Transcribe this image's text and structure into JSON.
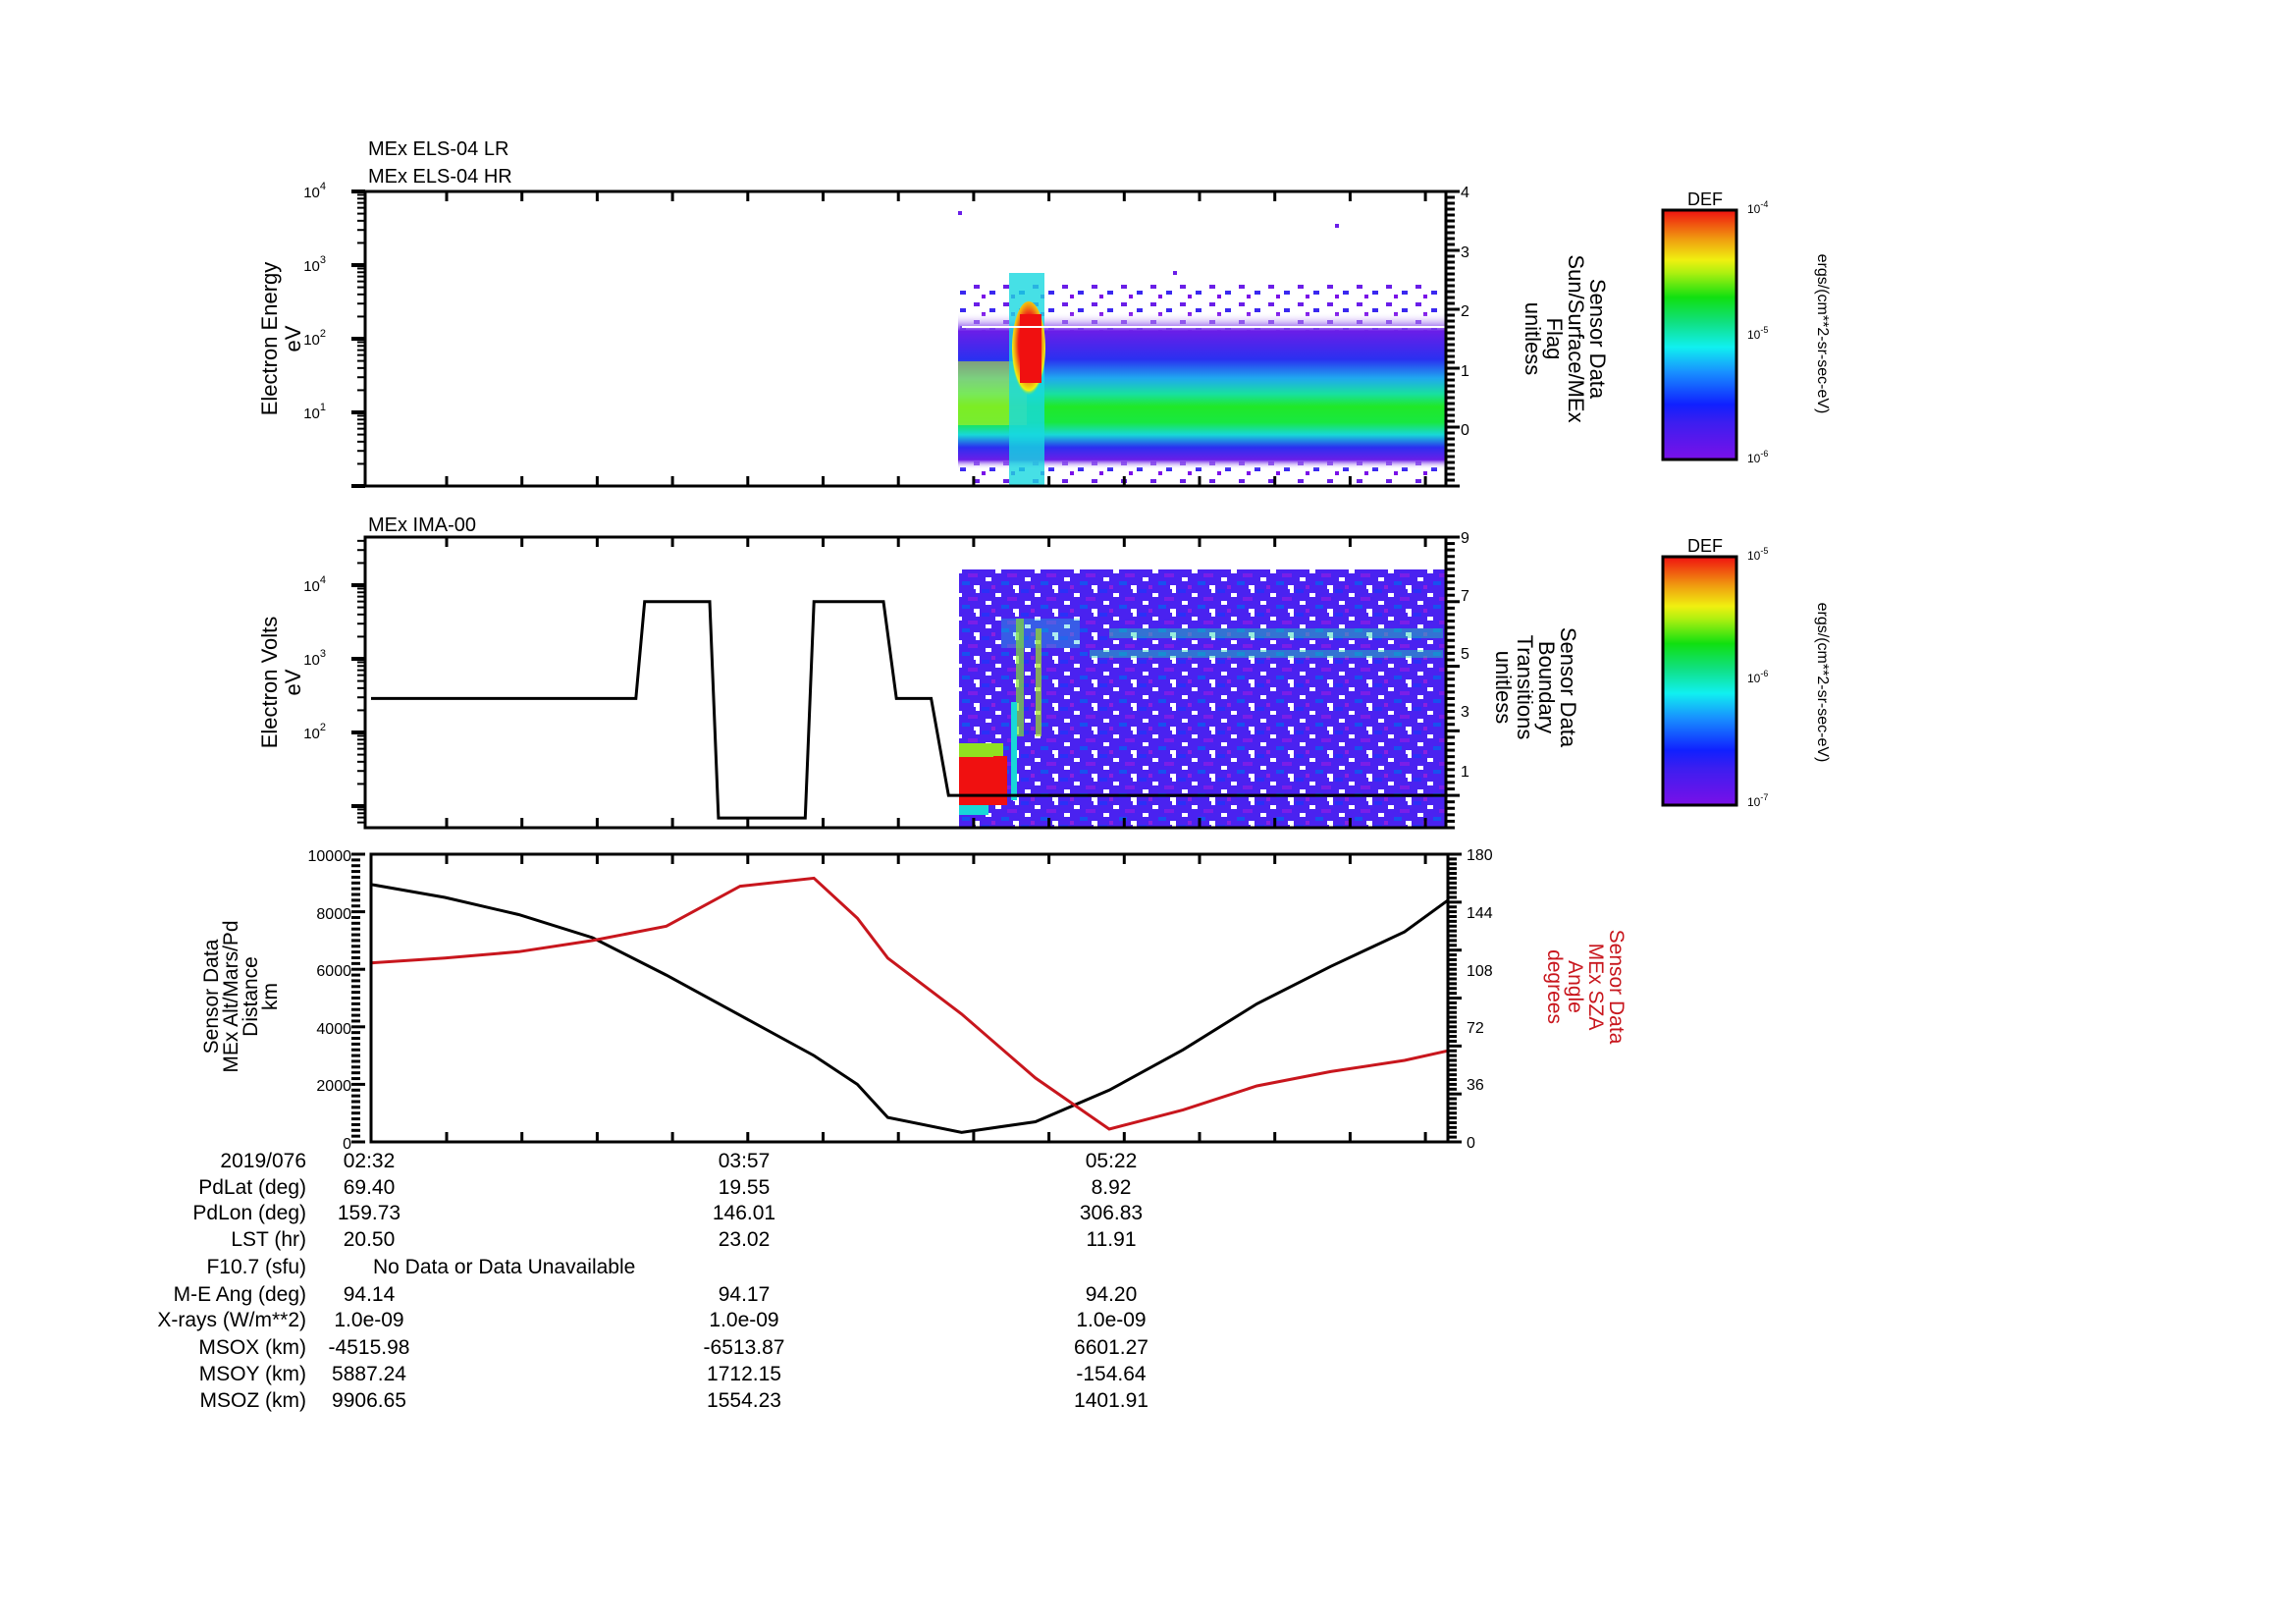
{
  "chart_data": [
    {
      "type": "heatmap",
      "title_lines": [
        "MEx ELS-04 LR",
        "MEx ELS-04 HR"
      ],
      "ylabel": [
        "Electron Energy",
        "eV"
      ],
      "yscale": "log",
      "ylim": [
        1,
        10000
      ],
      "yticks": [
        "10^1",
        "10^2",
        "10^3",
        "10^4"
      ],
      "right_ylabel": [
        "Sensor Data",
        "Sun/Surface/MEx",
        "Flag",
        "unitless"
      ],
      "right_ylim": [
        -1,
        4
      ],
      "right_yticks": [
        0,
        1,
        2,
        3,
        4
      ],
      "data_start_time": "04:26",
      "features": {
        "background_band_eV": [
          3,
          150
        ],
        "core_green_band_eV": [
          8,
          40
        ],
        "red_burst_time": "04:38",
        "red_burst_eV": [
          50,
          200
        ],
        "white_line_eV": 150
      },
      "colorbar": {
        "label": "DEF",
        "units": "ergs/(cm**2-sr-sec-eV)",
        "min": "10^-6",
        "mid": "10^-5",
        "max": "10^-4"
      }
    },
    {
      "type": "heatmap",
      "title": "MEx IMA-00",
      "ylabel": [
        "Electron Volts",
        "eV"
      ],
      "yscale": "log",
      "ylim": [
        5,
        45000
      ],
      "yticks": [
        "10^2",
        "10^3",
        "10^4"
      ],
      "right_ylabel": [
        "Sensor Data",
        "Boundary",
        "Transitions",
        "unitless"
      ],
      "right_ylim": [
        0,
        9
      ],
      "right_yticks": [
        1,
        3,
        5,
        7,
        9
      ],
      "data_start_time": "04:26",
      "boundary_transitions_line": {
        "times": [
          "02:32",
          "03:33",
          "03:35",
          "03:50",
          "03:52",
          "04:12",
          "04:14",
          "04:30",
          "04:33",
          "04:41",
          "04:45",
          "06:40"
        ],
        "values": [
          4,
          4,
          7,
          7,
          0.3,
          0.3,
          7,
          7,
          4,
          4,
          1,
          1
        ]
      },
      "colorbar": {
        "label": "DEF",
        "units": "ergs/(cm**2-sr-sec-eV)",
        "min": "10^-7",
        "mid": "10^-6",
        "max": "10^-5"
      }
    },
    {
      "type": "line",
      "ylabel": [
        "Sensor Data",
        "MEx Alt/Mars/Pd",
        "Distance",
        "km"
      ],
      "ylim": [
        0,
        10000
      ],
      "yticks": [
        0,
        2000,
        4000,
        6000,
        8000,
        10000
      ],
      "right_ylabel": [
        "Sensor Data",
        "MEx SZA",
        "Angle",
        "degrees"
      ],
      "right_ylim": [
        0,
        180
      ],
      "right_yticks": [
        0,
        36,
        72,
        108,
        144,
        180
      ],
      "x": [
        "02:32",
        "02:49",
        "03:06",
        "03:23",
        "03:40",
        "03:57",
        "04:14",
        "04:24",
        "04:31",
        "04:48",
        "05:05",
        "05:22",
        "05:39",
        "05:56",
        "06:13",
        "06:30",
        "06:40"
      ],
      "series": [
        {
          "name": "MEx Alt/Mars/Pd Distance (km)",
          "color": "#000000",
          "axis": "left",
          "values": [
            8950,
            8500,
            7900,
            7100,
            5800,
            4400,
            3000,
            2000,
            850,
            330,
            700,
            1800,
            3200,
            4800,
            6100,
            7300,
            8400
          ]
        },
        {
          "name": "MEx SZA Angle (degrees)",
          "color": "#c8161d",
          "axis": "right",
          "values": [
            112,
            115,
            119,
            126,
            135,
            160,
            165,
            140,
            115,
            80,
            40,
            8,
            20,
            35,
            44,
            51,
            57
          ]
        }
      ]
    }
  ],
  "xaxis": {
    "labels": [
      "02:32",
      "03:57",
      "05:22"
    ]
  },
  "info_table": {
    "rows": [
      {
        "label": "2019/076",
        "values": [
          "02:32",
          "03:57",
          "05:22"
        ]
      },
      {
        "label": "PdLat (deg)",
        "values": [
          "69.40",
          "19.55",
          "8.92"
        ]
      },
      {
        "label": "PdLon (deg)",
        "values": [
          "159.73",
          "146.01",
          "306.83"
        ]
      },
      {
        "label": "LST (hr)",
        "values": [
          "20.50",
          "23.02",
          "11.91"
        ]
      },
      {
        "label": "F10.7 (sfu)",
        "note": "No Data or Data Unavailable"
      },
      {
        "label": "M-E Ang (deg)",
        "values": [
          "94.14",
          "94.17",
          "94.20"
        ]
      },
      {
        "label": "X-rays (W/m**2)",
        "values": [
          "1.0e-09",
          "1.0e-09",
          "1.0e-09"
        ]
      },
      {
        "label": "MSOX (km)",
        "values": [
          "-4515.98",
          "-6513.87",
          "6601.27"
        ]
      },
      {
        "label": "MSOY (km)",
        "values": [
          "5887.24",
          "1712.15",
          "-154.64"
        ]
      },
      {
        "label": "MSOZ (km)",
        "values": [
          "9906.65",
          "1554.23",
          "1401.91"
        ]
      }
    ]
  },
  "colors": {
    "alt_line": "#000000",
    "sza_line": "#c8161d"
  }
}
